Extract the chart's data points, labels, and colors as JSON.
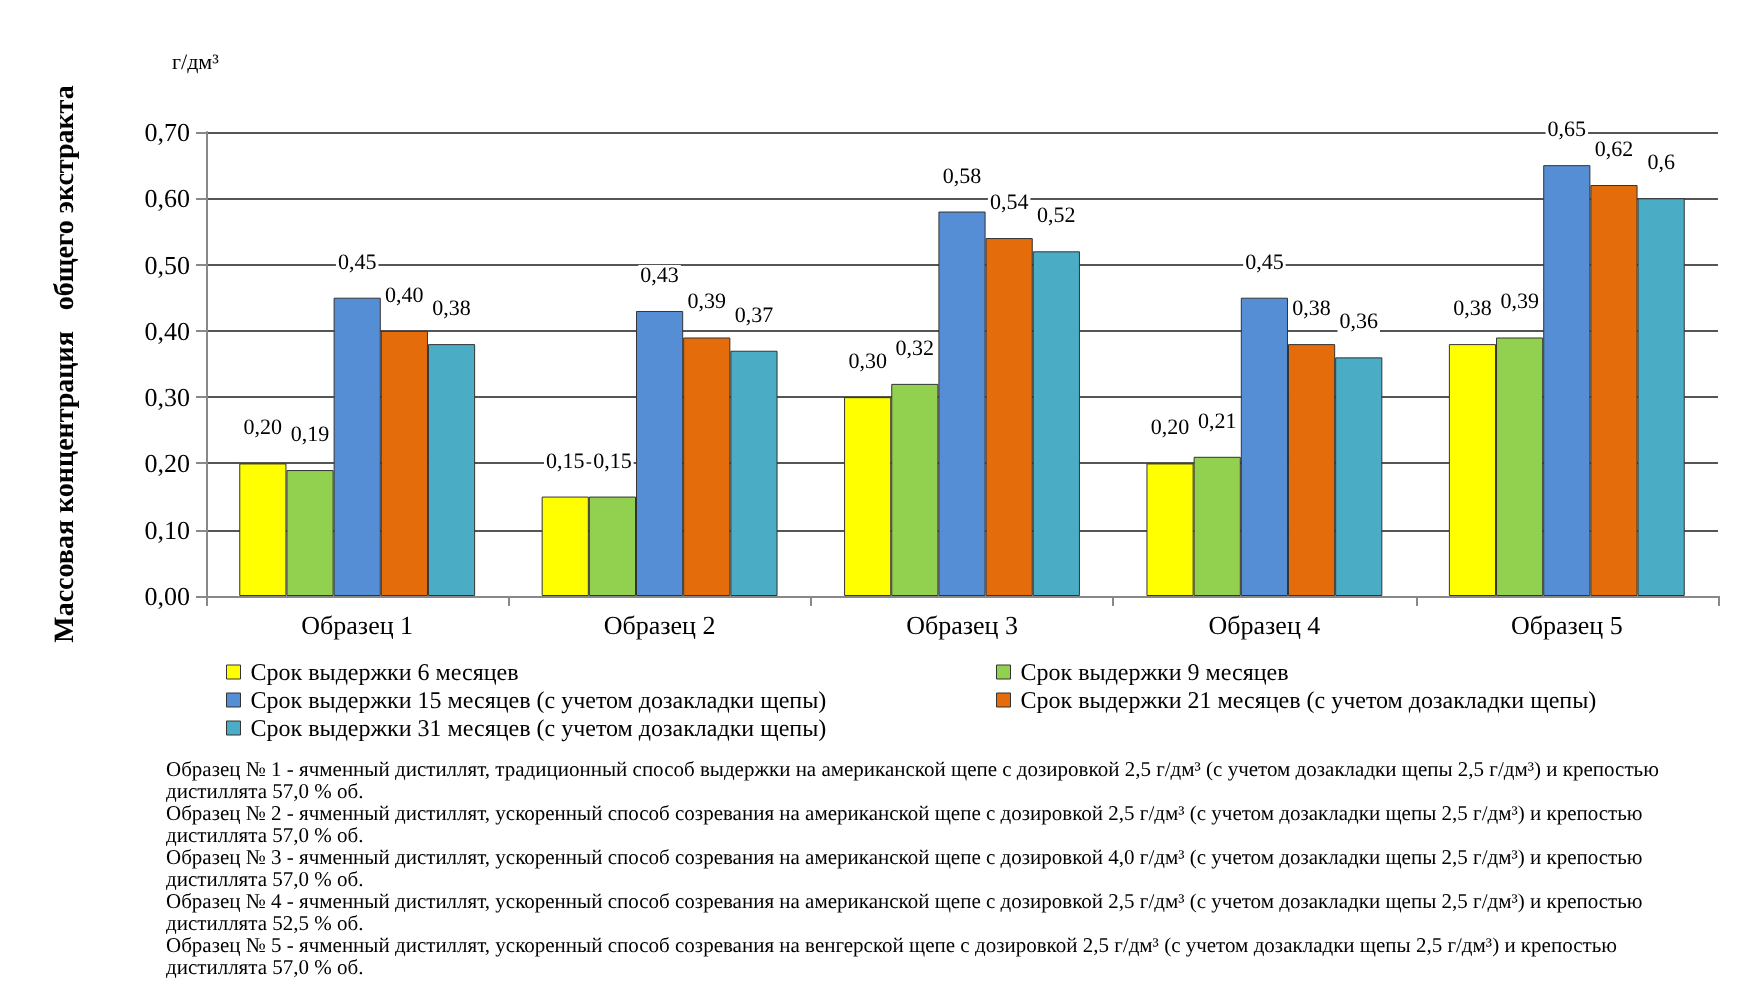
{
  "chart_data": {
    "type": "bar",
    "ylabel": "Массовая концентрация   общего экстракта",
    "categories": [
      "Образец 1",
      "Образец 2",
      "Образец 3",
      "Образец 4",
      "Образец 5"
    ],
    "series": [
      {
        "name": "Срок выдержки 6 месяцев",
        "color": "#ffff00",
        "values": [
          0.2,
          0.15,
          0.3,
          0.2,
          0.38
        ],
        "value_labels": [
          "0,20",
          "0,15",
          "0,30",
          "0,20",
          "0,38"
        ]
      },
      {
        "name": "Срок выдержки 9 месяцев",
        "color": "#92d050",
        "values": [
          0.19,
          0.15,
          0.32,
          0.21,
          0.39
        ],
        "value_labels": [
          "0,19",
          "0,15",
          "0,32",
          "0,21",
          "0,39"
        ]
      },
      {
        "name": "Срок выдержки 15 месяцев (с учетом дозакладки щепы)",
        "color": "#558ed5",
        "values": [
          0.45,
          0.43,
          0.58,
          0.45,
          0.65
        ],
        "value_labels": [
          "0,45",
          "0,43",
          "0,58",
          "0,45",
          "0,65"
        ]
      },
      {
        "name": "Срок выдержки 21 месяцев (с учетом дозакладки щепы)",
        "color": "#e46c0a",
        "values": [
          0.4,
          0.39,
          0.54,
          0.38,
          0.62
        ],
        "value_labels": [
          "0,40",
          "0,39",
          "0,54",
          "0,38",
          "0,62"
        ]
      },
      {
        "name": "Срок выдержки 31 месяцев (с учетом дозакладки щепы)",
        "color": "#4bacc6",
        "values": [
          0.38,
          0.37,
          0.52,
          0.36,
          0.6
        ],
        "value_labels": [
          "0,38",
          "0,37",
          "0,52",
          "0,36",
          "0,6"
        ]
      }
    ],
    "ylim": [
      0,
      0.7
    ],
    "yticks": [
      {
        "value": 0,
        "label": "0,00"
      },
      {
        "value": 0.1,
        "label": "0,10"
      },
      {
        "value": 0.2,
        "label": "0,20"
      },
      {
        "value": 0.3,
        "label": "0,30"
      },
      {
        "value": 0.4,
        "label": "0,40"
      },
      {
        "value": 0.5,
        "label": "0,50"
      },
      {
        "value": 0.6,
        "label": "0,60"
      },
      {
        "value": 0.7,
        "label": "0,70"
      }
    ],
    "grid": "y",
    "legend": "bottom",
    "annotations": [
      "г/дм³",
      "Образец № 1 - ячменный дистиллят, традиционный способ выдержки на американской щепе с дозировкой 2,5 г/дм³ (с учетом дозакладки щепы 2,5 г/дм³) и крепостью дистиллята 57,0 % об.",
      "Образец № 2 - ячменный дистиллят, ускоренный способ созревания на американской щепе с дозировкой 2,5 г/дм³ (с учетом дозакладки щепы 2,5 г/дм³) и крепостью дистиллята 57,0 % об.",
      "Образец № 3 - ячменный дистиллят, ускоренный способ созревания на американской щепе с дозировкой 4,0 г/дм³ (с учетом дозакладки щепы 2,5 г/дм³) и крепостью дистиллята 57,0 % об.",
      "Образец № 4 - ячменный дистиллят, ускоренный способ созревания на американской щепе с дозировкой 2,5 г/дм³ (с учетом дозакладки щепы 2,5 г/дм³) и крепостью дистиллята 52,5 % об.",
      "Образец № 5 - ячменный дистиллят, ускоренный способ созревания на венгерской щепе с дозировкой 2,5 г/дм³ (с учетом дозакладки щепы 2,5 г/дм³) и крепостью дистиллята 57,0 % об."
    ]
  }
}
